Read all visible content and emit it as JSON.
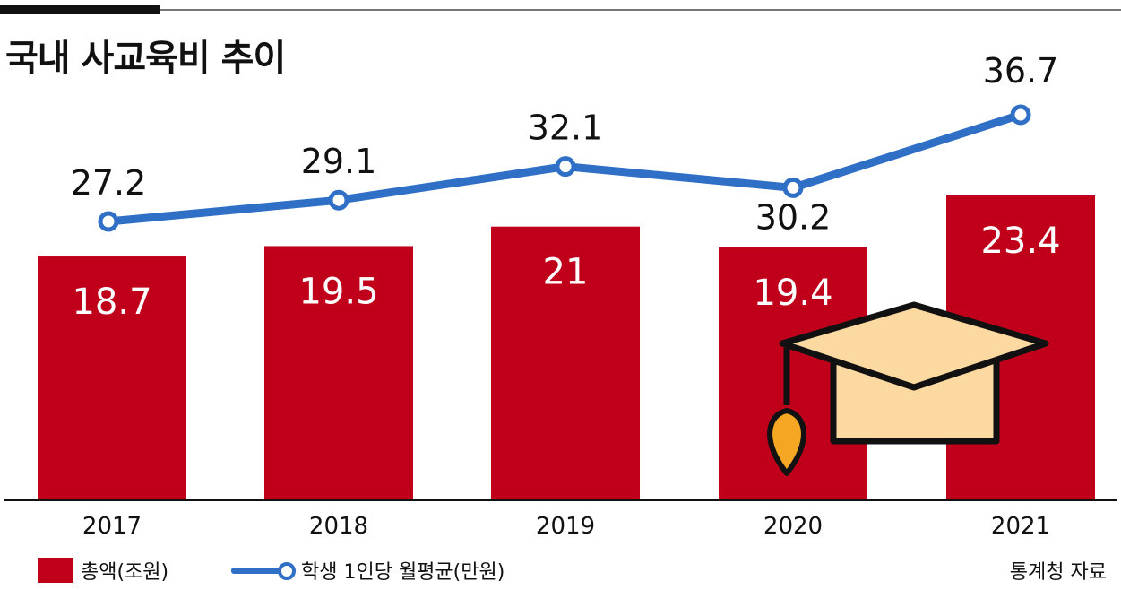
{
  "title": "국내 사교육비 추이",
  "source": "통계청 자료",
  "colors": {
    "bar": "#c0001a",
    "line": "#2f6fc6",
    "cap": "#fcd9a0",
    "tassel": "#f5a623"
  },
  "icon": "graduation-cap-icon",
  "chart_data": {
    "type": "bar",
    "categories": [
      "2017",
      "2018",
      "2019",
      "2020",
      "2021"
    ],
    "series": [
      {
        "name": "총액(조원)",
        "type": "bar",
        "values": [
          18.7,
          19.5,
          21,
          19.4,
          23.4
        ],
        "labels": [
          "18.7",
          "19.5",
          "21",
          "19.4",
          "23.4"
        ]
      },
      {
        "name": "학생 1인당 월평균(만원)",
        "type": "line",
        "values": [
          27.2,
          29.1,
          32.1,
          30.2,
          36.7
        ],
        "labels": [
          "27.2",
          "29.1",
          "32.1",
          "30.2",
          "36.7"
        ]
      }
    ],
    "legend": "bottom-left"
  }
}
